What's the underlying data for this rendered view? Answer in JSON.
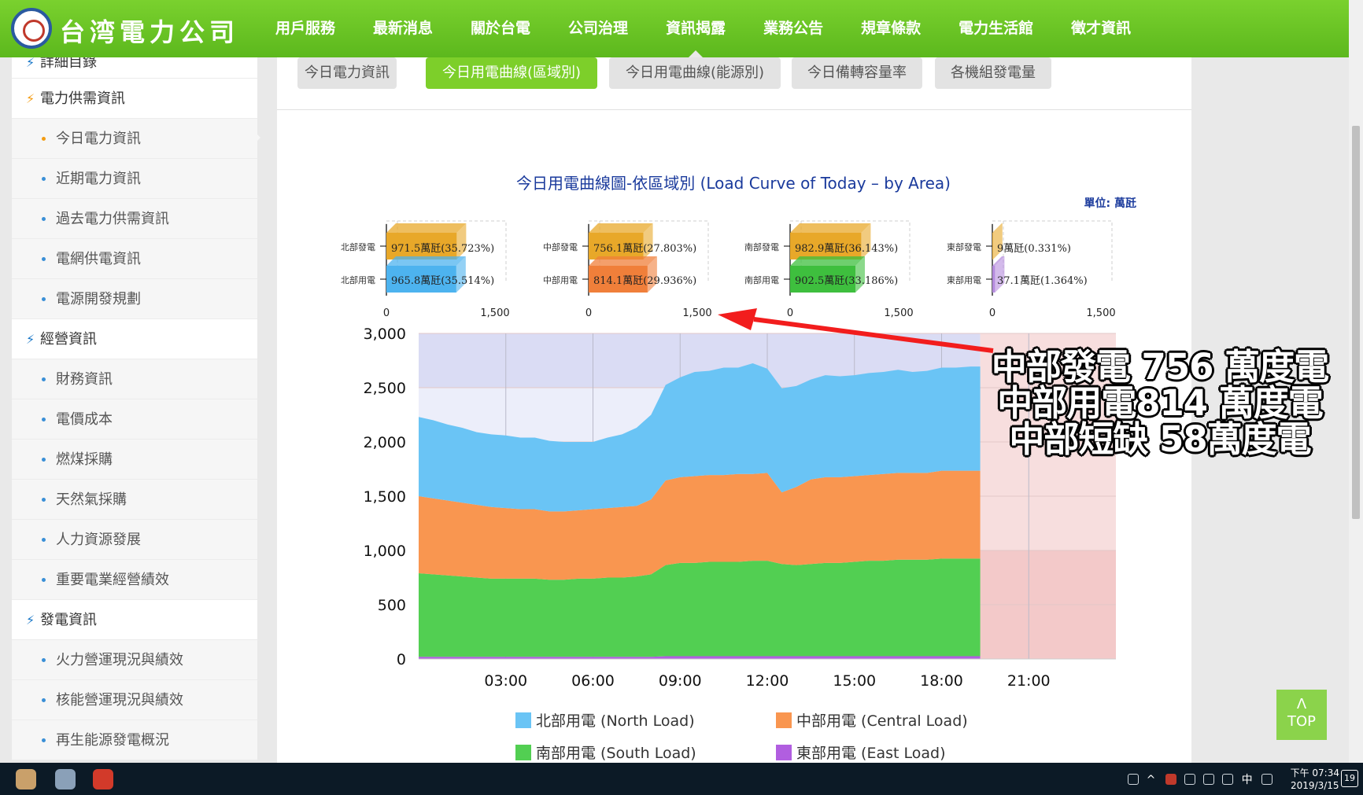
{
  "header": {
    "logo_text": "台湾電力公司",
    "nav": [
      "用戶服務",
      "最新消息",
      "關於台電",
      "公司治理",
      "資訊揭露",
      "業務公告",
      "規章條款",
      "電力生活館",
      "徵才資訊"
    ],
    "active_nav_index": 4
  },
  "sidebar": [
    {
      "label": "詳細目錄",
      "type": "partial"
    },
    {
      "label": "電力供需資訊",
      "type": "section",
      "color": "orange"
    },
    {
      "label": "今日電力資訊",
      "type": "sub",
      "active": true
    },
    {
      "label": "近期電力資訊",
      "type": "sub"
    },
    {
      "label": "過去電力供需資訊",
      "type": "sub"
    },
    {
      "label": "電網供電資訊",
      "type": "sub"
    },
    {
      "label": "電源開發規劃",
      "type": "sub"
    },
    {
      "label": "經營資訊",
      "type": "section",
      "color": "blue"
    },
    {
      "label": "財務資訊",
      "type": "sub"
    },
    {
      "label": "電價成本",
      "type": "sub"
    },
    {
      "label": "燃煤採購",
      "type": "sub"
    },
    {
      "label": "天然氣採購",
      "type": "sub"
    },
    {
      "label": "人力資源發展",
      "type": "sub"
    },
    {
      "label": "重要電業經營績效",
      "type": "sub"
    },
    {
      "label": "發電資訊",
      "type": "section",
      "color": "blue"
    },
    {
      "label": "火力營運現況與績效",
      "type": "sub"
    },
    {
      "label": "核能營運現況與績效",
      "type": "sub"
    },
    {
      "label": "再生能源發電概況",
      "type": "sub"
    }
  ],
  "tabs": [
    {
      "label": "今日電力資訊",
      "active": false
    },
    {
      "label": "今日用電曲線(區域別)",
      "active": true
    },
    {
      "label": "今日用電曲線(能源別)",
      "active": false
    },
    {
      "label": "今日備轉容量率",
      "active": false
    },
    {
      "label": "各機組發電量",
      "active": false
    }
  ],
  "chart_data": {
    "type": "area",
    "title": "今日用電曲線圖-依區域別 (Load Curve of Today – by Area)",
    "unit_label": "單位: 萬瓩",
    "x_ticks": [
      "03:00",
      "06:00",
      "09:00",
      "12:00",
      "15:00",
      "18:00",
      "21:00"
    ],
    "x_range_hours": [
      0,
      24
    ],
    "forecast_from_hour": 19.33,
    "y_ticks": [
      "0",
      "500",
      "1,000",
      "1,500",
      "2,000",
      "2,500",
      "3,000"
    ],
    "ylim": [
      0,
      3000
    ],
    "x": [
      0,
      0.5,
      1,
      1.5,
      2,
      2.5,
      3,
      3.5,
      4,
      4.5,
      5,
      5.5,
      6,
      6.5,
      7,
      7.5,
      8,
      8.5,
      9,
      9.5,
      10,
      10.5,
      11,
      11.5,
      12,
      12.5,
      13,
      13.5,
      14,
      14.5,
      15,
      15.5,
      16,
      16.5,
      17,
      17.5,
      18,
      18.5,
      19,
      19.33
    ],
    "stack_order": [
      "East",
      "South",
      "Central",
      "North"
    ],
    "series": [
      {
        "name": "北部用電 (North Load)",
        "key": "North",
        "color": "#6ac4f5",
        "values": [
          730,
          720,
          700,
          690,
          670,
          670,
          670,
          660,
          660,
          650,
          640,
          630,
          620,
          650,
          670,
          720,
          780,
          880,
          920,
          960,
          960,
          990,
          980,
          1020,
          960,
          960,
          930,
          920,
          940,
          930,
          930,
          940,
          940,
          950,
          930,
          940,
          950,
          950,
          960,
          960
        ]
      },
      {
        "name": "中部用電 (Central Load)",
        "key": "Central",
        "color": "#f99650",
        "values": [
          710,
          700,
          690,
          680,
          670,
          660,
          650,
          640,
          640,
          630,
          630,
          630,
          640,
          640,
          650,
          650,
          690,
          780,
          790,
          800,
          800,
          800,
          810,
          800,
          810,
          660,
          720,
          780,
          790,
          790,
          790,
          790,
          800,
          800,
          800,
          800,
          810,
          810,
          810,
          810
        ]
      },
      {
        "name": "南部用電 (South Load)",
        "key": "South",
        "color": "#52cf52",
        "values": [
          770,
          760,
          750,
          740,
          730,
          720,
          720,
          720,
          720,
          710,
          710,
          720,
          720,
          730,
          730,
          740,
          760,
          840,
          860,
          860,
          870,
          870,
          870,
          880,
          880,
          850,
          840,
          850,
          860,
          860,
          870,
          880,
          880,
          890,
          890,
          890,
          900,
          900,
          900,
          900
        ]
      },
      {
        "name": "東部用電 (East Load)",
        "key": "East",
        "color": "#b15ee0",
        "values": [
          20,
          20,
          20,
          20,
          20,
          20,
          20,
          20,
          20,
          20,
          20,
          20,
          20,
          20,
          20,
          20,
          20,
          25,
          25,
          25,
          25,
          25,
          25,
          25,
          25,
          25,
          25,
          25,
          25,
          25,
          25,
          25,
          25,
          25,
          25,
          25,
          25,
          25,
          25,
          25
        ]
      }
    ],
    "legend": [
      "北部用電 (North Load)",
      "中部用電 (Central Load)",
      "南部用電 (South Load)",
      "東部用電 (East Load)"
    ],
    "legend_placement": "bottom",
    "area_bars": {
      "type": "bar",
      "xlim": [
        0,
        1500
      ],
      "x_ticks": [
        "0",
        "1,500"
      ],
      "groups": [
        {
          "gen_label": "北部發電",
          "load_label": "北部用電",
          "gen_value": 971.5,
          "gen_text": "971.5萬瓩(35.723%)",
          "load_value": 965.8,
          "load_text": "965.8萬瓩(35.514%)",
          "load_color": "#4db3ef"
        },
        {
          "gen_label": "中部發電",
          "load_label": "中部用電",
          "gen_value": 756.1,
          "gen_text": "756.1萬瓩(27.803%)",
          "load_value": 814.1,
          "load_text": "814.1萬瓩(29.936%)",
          "load_color": "#f07f3a"
        },
        {
          "gen_label": "南部發電",
          "load_label": "南部用電",
          "gen_value": 982.9,
          "gen_text": "982.9萬瓩(36.143%)",
          "load_value": 902.5,
          "load_text": "902.5萬瓩(33.186%)",
          "load_color": "#3ebf3e"
        },
        {
          "gen_label": "東部發電",
          "load_label": "東部用電",
          "gen_value": 9,
          "gen_text": "9萬瓩(0.331%)",
          "load_value": 37.1,
          "load_text": "37.1萬瓩(1.364%)",
          "load_color": "#b58cde"
        }
      ],
      "gen_color": "#e8a829"
    },
    "annotation": [
      "中部發電 756 萬度電",
      "中部用電814 萬度電",
      "中部短缺  58萬度電"
    ]
  },
  "top_button": {
    "arrow": "Λ",
    "label": "TOP"
  },
  "taskbar": {
    "time": "下午 07:34",
    "date": "2019/3/15",
    "ime": "中",
    "notifications": "19"
  }
}
